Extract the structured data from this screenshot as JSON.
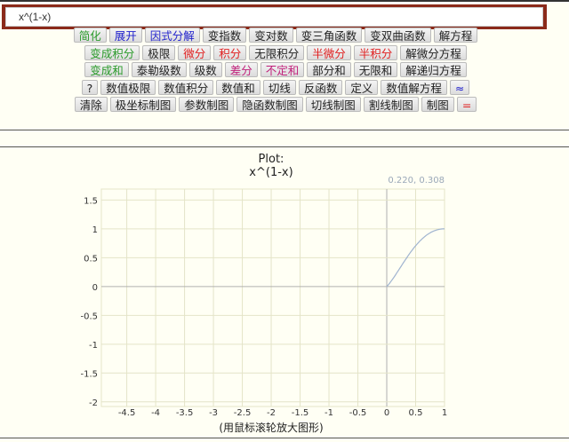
{
  "input": {
    "value": "x^(1-x)"
  },
  "rows": [
    [
      {
        "label": "简化",
        "c": "g"
      },
      {
        "label": "展开",
        "c": "b"
      },
      {
        "label": "因式分解",
        "c": "b"
      },
      {
        "label": "变指数",
        "c": ""
      },
      {
        "label": "变对数",
        "c": ""
      },
      {
        "label": "变三角函数",
        "c": ""
      },
      {
        "label": "变双曲函数",
        "c": ""
      },
      {
        "label": "解方程",
        "c": ""
      }
    ],
    [
      {
        "label": "变成积分",
        "c": "g"
      },
      {
        "label": "极限",
        "c": ""
      },
      {
        "label": "微分",
        "c": "r"
      },
      {
        "label": "积分",
        "c": "r"
      },
      {
        "label": "无限积分",
        "c": ""
      },
      {
        "label": "半微分",
        "c": "r"
      },
      {
        "label": "半积分",
        "c": "r"
      },
      {
        "label": "解微分方程",
        "c": ""
      }
    ],
    [
      {
        "label": "变成和",
        "c": "g"
      },
      {
        "label": "泰勒级数",
        "c": ""
      },
      {
        "label": "级数",
        "c": ""
      },
      {
        "label": "差分",
        "c": "p"
      },
      {
        "label": "不定和",
        "c": "p"
      },
      {
        "label": "部分和",
        "c": ""
      },
      {
        "label": "无限和",
        "c": ""
      },
      {
        "label": "解递归方程",
        "c": ""
      }
    ],
    [
      {
        "label": "?",
        "c": ""
      },
      {
        "label": "数值极限",
        "c": ""
      },
      {
        "label": "数值积分",
        "c": ""
      },
      {
        "label": "数值和",
        "c": ""
      },
      {
        "label": "切线",
        "c": ""
      },
      {
        "label": "反函数",
        "c": ""
      },
      {
        "label": "定义",
        "c": ""
      },
      {
        "label": "数值解方程",
        "c": ""
      },
      {
        "label": "≈",
        "c": "b"
      }
    ],
    [
      {
        "label": "清除",
        "c": ""
      },
      {
        "label": "极坐标制图",
        "c": ""
      },
      {
        "label": "参数制图",
        "c": ""
      },
      {
        "label": "隐函数制图",
        "c": ""
      },
      {
        "label": "切线制图",
        "c": ""
      },
      {
        "label": "割线制图",
        "c": ""
      },
      {
        "label": "制图",
        "c": ""
      },
      {
        "label": "=",
        "c": "r"
      }
    ]
  ],
  "chart_data": {
    "type": "line",
    "title": "Plot:",
    "subtitle": "x^(1-x)",
    "coords": "0.220, 0.308",
    "xlabel": "(用鼠标滚轮放大图形)",
    "xlim": [
      -4.94,
      1
    ],
    "ylim": [
      -2.08,
      1.69
    ],
    "xticks": [
      "-4.5",
      "-4",
      "-3.5",
      "-3",
      "-2.5",
      "-2",
      "-1.5",
      "-1",
      "-0.5",
      "0",
      "0.5",
      "1"
    ],
    "yticks": [
      "1.5",
      "1",
      "0.5",
      "0",
      "-0.5",
      "-1",
      "-1.5",
      "-2"
    ],
    "grid": true,
    "function": "x^(1-x)",
    "domain": [
      0,
      1
    ],
    "colors": {
      "curve": "#a0b4d0",
      "grid": "#e4e4c8",
      "axis": "#b0b0b0"
    }
  }
}
